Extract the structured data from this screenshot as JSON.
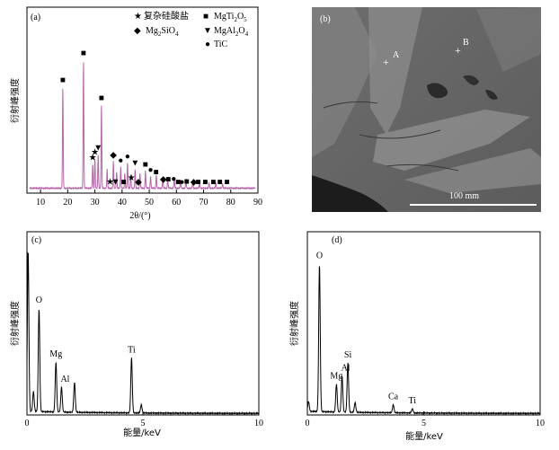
{
  "chart_data": [
    {
      "panel": "(a)",
      "type": "line",
      "xlabel": "2θ/(°)",
      "ylabel": "衍射峰强度",
      "xlim": [
        5,
        90
      ],
      "xticks": [
        10,
        20,
        30,
        40,
        50,
        60,
        70,
        80,
        90
      ],
      "line_color": "#b565a7",
      "peaks": [
        {
          "x": 18.2,
          "y": 0.75
        },
        {
          "x": 25.8,
          "y": 0.95
        },
        {
          "x": 29.2,
          "y": 0.18
        },
        {
          "x": 30.0,
          "y": 0.22
        },
        {
          "x": 31.2,
          "y": 0.25
        },
        {
          "x": 32.4,
          "y": 0.62
        },
        {
          "x": 34.5,
          "y": 0.14
        },
        {
          "x": 36.8,
          "y": 0.2
        },
        {
          "x": 38.0,
          "y": 0.12
        },
        {
          "x": 39.5,
          "y": 0.16
        },
        {
          "x": 41.0,
          "y": 0.11
        },
        {
          "x": 42.0,
          "y": 0.19
        },
        {
          "x": 43.2,
          "y": 0.1
        },
        {
          "x": 44.8,
          "y": 0.14
        },
        {
          "x": 46.6,
          "y": 0.11
        },
        {
          "x": 48.6,
          "y": 0.13
        },
        {
          "x": 50.5,
          "y": 0.09
        },
        {
          "x": 52.6,
          "y": 0.1
        },
        {
          "x": 55.0,
          "y": 0.07
        },
        {
          "x": 56.8,
          "y": 0.07
        },
        {
          "x": 59.2,
          "y": 0.08
        },
        {
          "x": 61.5,
          "y": 0.06
        },
        {
          "x": 63.5,
          "y": 0.07
        },
        {
          "x": 66.0,
          "y": 0.05
        },
        {
          "x": 68.5,
          "y": 0.04
        },
        {
          "x": 72.0,
          "y": 0.04
        },
        {
          "x": 74.5,
          "y": 0.04
        },
        {
          "x": 77.0,
          "y": 0.03
        }
      ],
      "legend": [
        {
          "symbol": "★",
          "label": "复杂硅酸盐"
        },
        {
          "symbol": "■",
          "label": "MgTi2O5"
        },
        {
          "symbol": "◆",
          "label": "Mg2SiO4"
        },
        {
          "symbol": "▼",
          "label": "MgAl2O4"
        },
        {
          "symbol": "●",
          "label": "TiC"
        }
      ],
      "markers": [
        {
          "x": 18.2,
          "symbol": "■"
        },
        {
          "x": 25.8,
          "symbol": "■"
        },
        {
          "x": 32.4,
          "symbol": "■"
        },
        {
          "x": 29.2,
          "symbol": "★"
        },
        {
          "x": 30.0,
          "symbol": "★"
        },
        {
          "x": 31.2,
          "symbol": "▼"
        },
        {
          "x": 35.6,
          "symbol": "★"
        },
        {
          "x": 36.8,
          "symbol": "◆"
        },
        {
          "x": 37.6,
          "symbol": "▼"
        },
        {
          "x": 39.5,
          "symbol": "●"
        },
        {
          "x": 40.6,
          "symbol": "■"
        },
        {
          "x": 42.0,
          "symbol": "●"
        },
        {
          "x": 43.4,
          "symbol": "★"
        },
        {
          "x": 44.8,
          "symbol": "▼"
        },
        {
          "x": 46.0,
          "symbol": "◆"
        },
        {
          "x": 48.6,
          "symbol": "■"
        },
        {
          "x": 50.5,
          "symbol": "●"
        },
        {
          "x": 52.5,
          "symbol": "■"
        },
        {
          "x": 55.2,
          "symbol": "◆"
        },
        {
          "x": 57.0,
          "symbol": "■"
        },
        {
          "x": 59.0,
          "symbol": "●"
        },
        {
          "x": 60.6,
          "symbol": "■"
        },
        {
          "x": 62.0,
          "symbol": "●"
        },
        {
          "x": 63.8,
          "symbol": "■"
        },
        {
          "x": 66.4,
          "symbol": "◆"
        },
        {
          "x": 68.0,
          "symbol": "■"
        },
        {
          "x": 70.6,
          "symbol": "■"
        },
        {
          "x": 73.6,
          "symbol": "■"
        },
        {
          "x": 76.0,
          "symbol": "■"
        },
        {
          "x": 78.6,
          "symbol": "■"
        }
      ]
    },
    {
      "panel": "(b)",
      "type": "image",
      "points": [
        {
          "label": "A"
        },
        {
          "label": "B"
        }
      ],
      "scale_bar": "100 mm"
    },
    {
      "panel": "(c)",
      "type": "line",
      "xlabel": "能量/keV",
      "ylabel": "衍射峰强度",
      "xlim": [
        0,
        10
      ],
      "xticks": [
        0,
        5,
        10
      ],
      "peaks": [
        {
          "x": 0.05,
          "y": 0.97
        },
        {
          "x": 0.28,
          "y": 0.12
        },
        {
          "x": 0.52,
          "y": 0.62
        },
        {
          "x": 1.25,
          "y": 0.3
        },
        {
          "x": 1.49,
          "y": 0.15
        },
        {
          "x": 2.05,
          "y": 0.18
        },
        {
          "x": 4.51,
          "y": 0.33
        },
        {
          "x": 4.93,
          "y": 0.05
        }
      ],
      "labels": [
        {
          "x": 0.52,
          "text": "O"
        },
        {
          "x": 1.25,
          "text": "Mg"
        },
        {
          "x": 1.49,
          "text": "Al"
        },
        {
          "x": 4.51,
          "text": "Ti"
        }
      ]
    },
    {
      "panel": "(d)",
      "type": "line",
      "xlabel": "能量/keV",
      "ylabel": "衍射峰强度",
      "xlim": [
        0,
        10
      ],
      "xticks": [
        0,
        5,
        10
      ],
      "peaks": [
        {
          "x": 0.05,
          "y": 0.06
        },
        {
          "x": 0.52,
          "y": 0.9
        },
        {
          "x": 1.25,
          "y": 0.17
        },
        {
          "x": 1.49,
          "y": 0.22
        },
        {
          "x": 1.74,
          "y": 0.3
        },
        {
          "x": 2.05,
          "y": 0.06
        },
        {
          "x": 3.69,
          "y": 0.05
        },
        {
          "x": 4.51,
          "y": 0.025
        }
      ],
      "labels": [
        {
          "x": 0.52,
          "text": "O"
        },
        {
          "x": 1.25,
          "text": "Mg"
        },
        {
          "x": 1.49,
          "text": "Al"
        },
        {
          "x": 1.74,
          "text": "Si"
        },
        {
          "x": 3.69,
          "text": "Ca"
        },
        {
          "x": 4.51,
          "text": "Ti"
        }
      ]
    }
  ]
}
